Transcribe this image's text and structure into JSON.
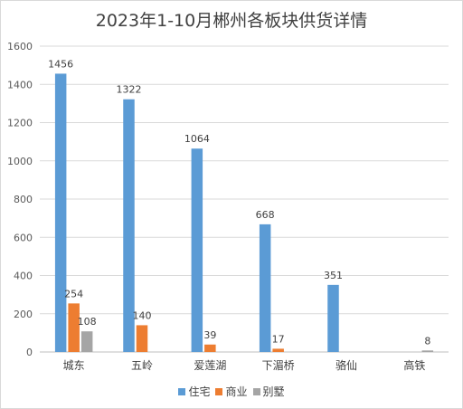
{
  "chart_data": {
    "type": "bar",
    "title": "2023年1-10月郴州各板块供货详情",
    "categories": [
      "城东",
      "五岭",
      "爱莲湖",
      "下湄桥",
      "骆仙",
      "高铁"
    ],
    "series": [
      {
        "name": "住宅",
        "color": "#5b9bd5",
        "values": [
          1456,
          1322,
          1064,
          668,
          351,
          null
        ]
      },
      {
        "name": "商业",
        "color": "#ed7d31",
        "values": [
          254,
          140,
          39,
          17,
          null,
          null
        ]
      },
      {
        "name": "别墅",
        "color": "#a5a5a5",
        "values": [
          108,
          null,
          null,
          null,
          null,
          8
        ]
      }
    ],
    "ylim": [
      0,
      1600
    ],
    "yticks": [
      0,
      200,
      400,
      600,
      800,
      1000,
      1200,
      1400,
      1600
    ],
    "grid": true,
    "legend_position": "bottom"
  }
}
